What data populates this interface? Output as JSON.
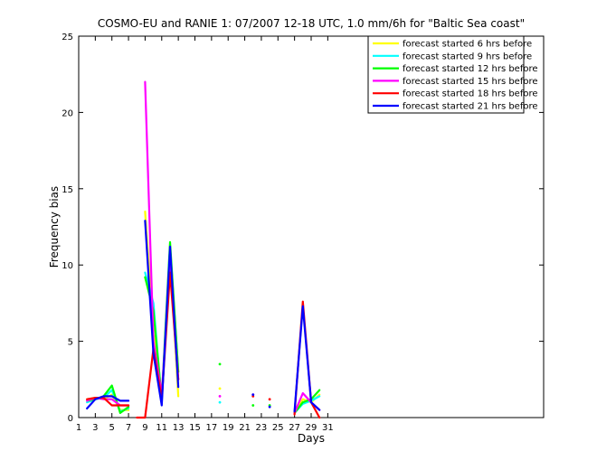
{
  "chart_data": {
    "type": "line",
    "title": "COSMO-EU and RANIE 1: 07/2007 12-18 UTC, 1.0 mm/6h for \"Baltic Sea coast\"",
    "xlabel": "Days",
    "ylabel": "Frequency bias",
    "xlim": [
      1,
      57
    ],
    "ylim": [
      0,
      25
    ],
    "xticks": [
      1,
      3,
      5,
      7,
      9,
      11,
      13,
      15,
      17,
      19,
      21,
      23,
      25,
      27,
      29,
      31
    ],
    "yticks": [
      0,
      5,
      10,
      15,
      20,
      25
    ],
    "grid": false,
    "legend_position": "top-right",
    "series": [
      {
        "name": "forecast started 6 hrs before",
        "color": "#ffff00",
        "points": [
          [
            2,
            1.2
          ],
          [
            3,
            1.3
          ],
          [
            4,
            1.2
          ],
          [
            5,
            1.5
          ],
          [
            6,
            0.5
          ],
          [
            7,
            0.5
          ],
          [
            null,
            null
          ],
          [
            9,
            13.5
          ],
          [
            10,
            5.5
          ],
          [
            11,
            1.0
          ],
          [
            12,
            11.0
          ],
          [
            13,
            1.4
          ],
          [
            null,
            null
          ],
          [
            27,
            0.3
          ],
          [
            28,
            1.2
          ],
          [
            29,
            1.0
          ],
          [
            30,
            1.5
          ]
        ],
        "dots": [
          [
            18,
            1.9
          ]
        ]
      },
      {
        "name": "forecast started 9 hrs before",
        "color": "#00ffff",
        "points": [
          [
            2,
            1.0
          ],
          [
            3,
            1.2
          ],
          [
            4,
            1.3
          ],
          [
            5,
            1.8
          ],
          [
            6,
            0.4
          ],
          [
            7,
            0.6
          ],
          [
            null,
            null
          ],
          [
            9,
            9.5
          ],
          [
            10,
            7.5
          ],
          [
            11,
            1.0
          ],
          [
            12,
            11.2
          ],
          [
            13,
            3.0
          ],
          [
            null,
            null
          ],
          [
            27,
            0.3
          ],
          [
            28,
            0.9
          ],
          [
            29,
            1.1
          ],
          [
            30,
            1.4
          ]
        ],
        "dots": [
          [
            18,
            1.0
          ]
        ]
      },
      {
        "name": "forecast started 12 hrs before",
        "color": "#00ff00",
        "points": [
          [
            2,
            1.1
          ],
          [
            3,
            1.2
          ],
          [
            4,
            1.4
          ],
          [
            5,
            2.1
          ],
          [
            6,
            0.3
          ],
          [
            7,
            0.7
          ],
          [
            null,
            null
          ],
          [
            9,
            9.2
          ],
          [
            10,
            7.0
          ],
          [
            11,
            1.2
          ],
          [
            12,
            11.5
          ],
          [
            13,
            3.0
          ],
          [
            null,
            null
          ],
          [
            27,
            0.3
          ],
          [
            28,
            1.0
          ],
          [
            29,
            1.2
          ],
          [
            30,
            1.8
          ]
        ],
        "dots": [
          [
            18,
            3.5
          ],
          [
            22,
            0.8
          ],
          [
            24,
            0.8
          ]
        ]
      },
      {
        "name": "forecast started 15 hrs before",
        "color": "#ff00ff",
        "points": [
          [
            2,
            1.1
          ],
          [
            3,
            1.3
          ],
          [
            4,
            1.2
          ],
          [
            5,
            1.2
          ],
          [
            6,
            0.8
          ],
          [
            7,
            0.8
          ],
          [
            null,
            null
          ],
          [
            9,
            22.0
          ],
          [
            10,
            5.0
          ],
          [
            11,
            1.5
          ],
          [
            12,
            10.0
          ],
          [
            13,
            2.5
          ],
          [
            null,
            null
          ],
          [
            27,
            0.3
          ],
          [
            28,
            1.6
          ],
          [
            29,
            1.0
          ],
          [
            30,
            0.5
          ]
        ],
        "dots": [
          [
            18,
            1.4
          ],
          [
            22,
            1.5
          ]
        ]
      },
      {
        "name": "forecast started 18 hrs before",
        "color": "#ff0000",
        "points": [
          [
            2,
            1.2
          ],
          [
            3,
            1.3
          ],
          [
            4,
            1.3
          ],
          [
            5,
            0.8
          ],
          [
            6,
            0.8
          ],
          [
            7,
            0.8
          ],
          [
            null,
            null
          ],
          [
            8,
            0
          ],
          [
            9,
            0
          ],
          [
            10,
            4.5
          ],
          [
            11,
            1.2
          ],
          [
            12,
            9.5
          ],
          [
            13,
            2.5
          ],
          [
            null,
            null
          ],
          [
            27,
            0.2
          ],
          [
            28,
            7.6
          ],
          [
            29,
            1.0
          ],
          [
            30,
            0.0
          ]
        ],
        "dots": [
          [
            22,
            1.4
          ],
          [
            24,
            1.2
          ]
        ]
      },
      {
        "name": "forecast started 21 hrs before",
        "color": "#0000ff",
        "points": [
          [
            2,
            0.6
          ],
          [
            3,
            1.2
          ],
          [
            4,
            1.4
          ],
          [
            5,
            1.4
          ],
          [
            6,
            1.1
          ],
          [
            7,
            1.1
          ],
          [
            null,
            null
          ],
          [
            9,
            12.9
          ],
          [
            10,
            4.2
          ],
          [
            11,
            0.8
          ],
          [
            12,
            11.2
          ],
          [
            13,
            2.0
          ],
          [
            null,
            null
          ],
          [
            27,
            0.4
          ],
          [
            28,
            7.3
          ],
          [
            29,
            1.0
          ],
          [
            30,
            0.5
          ]
        ],
        "dots": [
          [
            22,
            1.5
          ],
          [
            24,
            0.7
          ]
        ]
      }
    ]
  }
}
